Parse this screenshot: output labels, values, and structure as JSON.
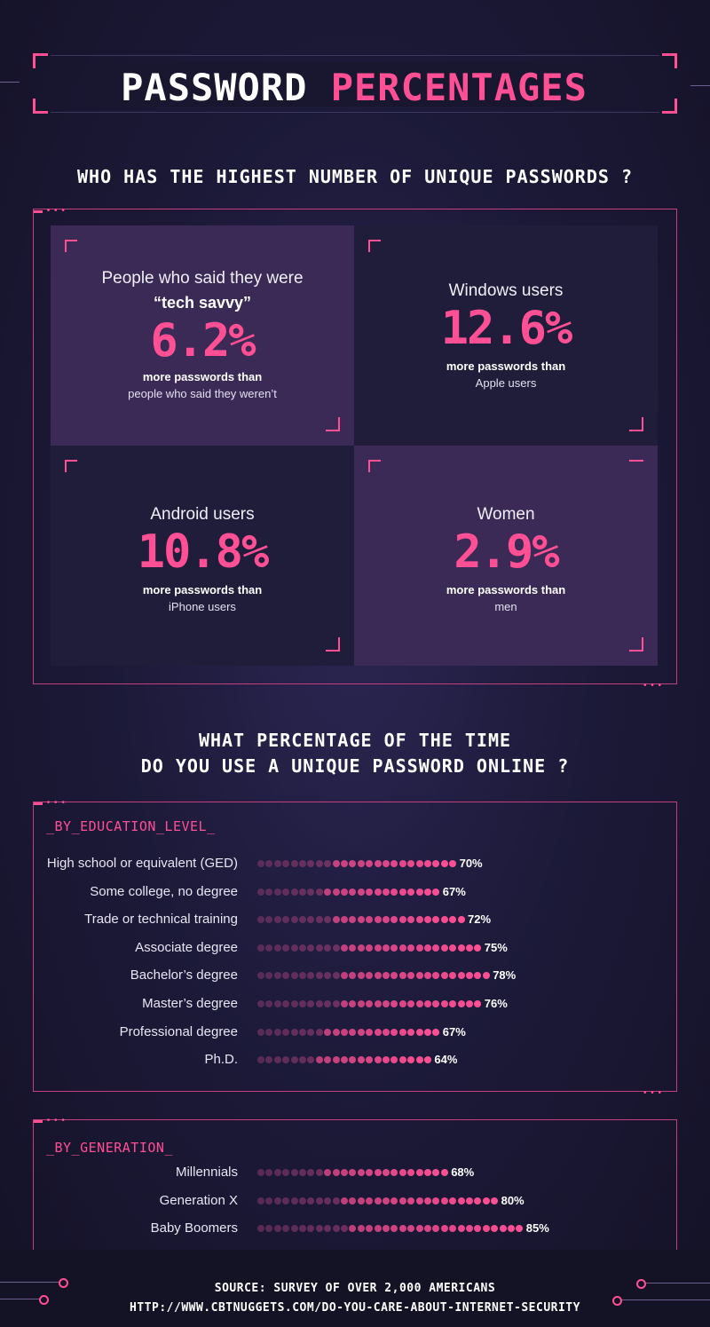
{
  "title": {
    "part1": "PASSWORD",
    "part2": "PERCENTAGES"
  },
  "section1": {
    "heading": "WHO HAS THE HIGHEST NUMBER OF UNIQUE PASSWORDS ?",
    "cards": [
      {
        "label": "People who said they were",
        "label_bold": "“tech savvy”",
        "value": "6.2%",
        "sub_bold": "more passwords than",
        "sub": "people who said they weren’t"
      },
      {
        "label": "Windows users",
        "label_bold": "",
        "value": "12.6%",
        "sub_bold": "more passwords than",
        "sub": "Apple users"
      },
      {
        "label": "Android users",
        "label_bold": "",
        "value": "10.8%",
        "sub_bold": "more passwords than",
        "sub": "iPhone users"
      },
      {
        "label": "Women",
        "label_bold": "",
        "value": "2.9%",
        "sub_bold": "more passwords than",
        "sub": "men"
      }
    ]
  },
  "section2": {
    "heading_line1": "WHAT PERCENTAGE OF THE TIME",
    "heading_line2": "DO YOU USE A UNIQUE PASSWORD ONLINE ?"
  },
  "chart_data": [
    {
      "type": "bar",
      "title": "_BY_EDUCATION_LEVEL_",
      "categories": [
        "High school or equivalent (GED)",
        "Some college, no degree",
        "Trade or technical training",
        "Associate degree",
        "Bachelor’s degree",
        "Master’s degree",
        "Professional degree",
        "Ph.D."
      ],
      "values": [
        70,
        67,
        72,
        75,
        78,
        76,
        67,
        64
      ],
      "value_labels": [
        "70%",
        "67%",
        "72%",
        "75%",
        "78%",
        "76%",
        "67%",
        "64%"
      ],
      "unit": "%"
    },
    {
      "type": "bar",
      "title": "_BY_GENERATION_",
      "categories": [
        "Millennials",
        "Generation X",
        "Baby Boomers"
      ],
      "values": [
        68,
        80,
        85
      ],
      "value_labels": [
        "68%",
        "80%",
        "85%"
      ],
      "unit": "%"
    }
  ],
  "footer": {
    "line1": "SOURCE:  SURVEY OF OVER 2,000 AMERICANS",
    "line2": "HTTP://WWW.CBTNUGGETS.COM/DO-YOU-CARE-ABOUT-INTERNET-SECURITY"
  },
  "colors": {
    "accent": "#ff4f95",
    "accent_dim": "#8a3a6e",
    "background": "#1d1a3a"
  }
}
